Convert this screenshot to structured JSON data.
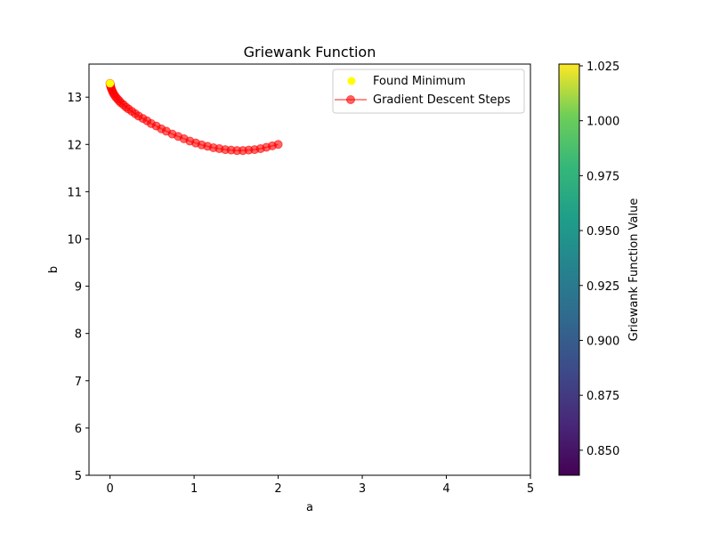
{
  "chart_data": {
    "type": "scatter",
    "title": "Griewank Function",
    "xlabel": "a",
    "ylabel": "b",
    "xlim": [
      -0.25,
      5.0
    ],
    "ylim": [
      5.0,
      13.7
    ],
    "xticks": [
      0,
      1,
      2,
      3,
      4,
      5
    ],
    "yticks": [
      5,
      6,
      7,
      8,
      9,
      10,
      11,
      12,
      13
    ],
    "grid": false,
    "legend_position": "top-right",
    "series": [
      {
        "name": "Found Minimum",
        "kind": "scatter",
        "color": "#ffff00",
        "points": [
          [
            0.0,
            13.29
          ]
        ]
      },
      {
        "name": "Gradient Descent Steps",
        "kind": "line-marker",
        "color": "#ff0000",
        "alpha": 0.6,
        "x": [
          2.0,
          1.93,
          1.86,
          1.79,
          1.72,
          1.65,
          1.58,
          1.51,
          1.44,
          1.37,
          1.3,
          1.23,
          1.16,
          1.09,
          1.02,
          0.95,
          0.88,
          0.81,
          0.74,
          0.67,
          0.61,
          0.55,
          0.49,
          0.44,
          0.39,
          0.34,
          0.3,
          0.26,
          0.22,
          0.19,
          0.16,
          0.13,
          0.11,
          0.09,
          0.07,
          0.055,
          0.04,
          0.03,
          0.02,
          0.012,
          0.006,
          0.002,
          0.0
        ],
        "y": [
          12.0,
          11.97,
          11.94,
          11.91,
          11.89,
          11.88,
          11.87,
          11.87,
          11.88,
          11.89,
          11.91,
          11.93,
          11.96,
          11.99,
          12.03,
          12.07,
          12.12,
          12.17,
          12.22,
          12.28,
          12.33,
          12.39,
          12.44,
          12.5,
          12.55,
          12.6,
          12.65,
          12.7,
          12.75,
          12.79,
          12.84,
          12.88,
          12.92,
          12.96,
          13.0,
          13.04,
          13.08,
          13.12,
          13.16,
          13.2,
          13.24,
          13.27,
          13.29
        ]
      }
    ],
    "colorbar": {
      "label": "Griewank Function Value",
      "min": 0.8386,
      "max": 1.0258,
      "ticks": [
        "0.850",
        "0.875",
        "0.900",
        "0.925",
        "0.950",
        "0.975",
        "1.000",
        "1.025"
      ],
      "tick_values": [
        0.85,
        0.875,
        0.9,
        0.925,
        0.95,
        0.975,
        1.0,
        1.025
      ],
      "colormap": "viridis"
    }
  }
}
